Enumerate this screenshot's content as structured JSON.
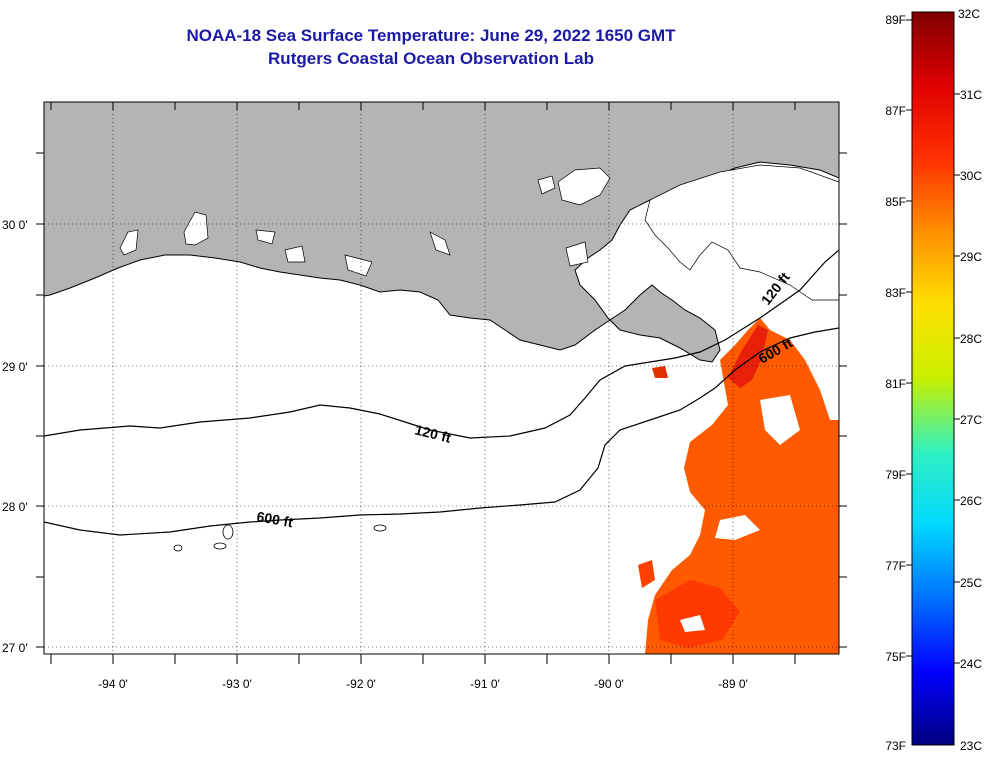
{
  "title": "NOAA-18 Sea Surface Temperature:  June 29, 2022 1650 GMT",
  "subtitle": "Rutgers Coastal Ocean Observation Lab",
  "map": {
    "lon_ticks": [
      "-94 0'",
      "-93 0'",
      "-92 0'",
      "-91 0'",
      "-90 0'",
      "-89 0'"
    ],
    "lat_ticks": [
      "30 0'",
      "29 0'",
      "28 0'",
      "27 0'"
    ],
    "contour_labels": [
      "120 ft",
      "600 ft",
      "120 ft",
      "600 ft"
    ]
  },
  "colorbar": {
    "fahrenheit": [
      "89F",
      "87F",
      "85F",
      "83F",
      "81F",
      "79F",
      "77F",
      "75F",
      "73F"
    ],
    "celsius": [
      "32C",
      "31C",
      "30C",
      "29C",
      "28C",
      "27C",
      "26C",
      "25C",
      "24C",
      "23C"
    ],
    "stops": [
      "#000080",
      "#0000ff",
      "#0070ff",
      "#00d8ff",
      "#30f0c0",
      "#c8f000",
      "#ffe000",
      "#ff9000",
      "#ff3000",
      "#e00000",
      "#800000"
    ]
  },
  "colors": {
    "title": "#1a1aa6",
    "land": "#b4b4b4",
    "warm_water": "#ff5a00"
  }
}
